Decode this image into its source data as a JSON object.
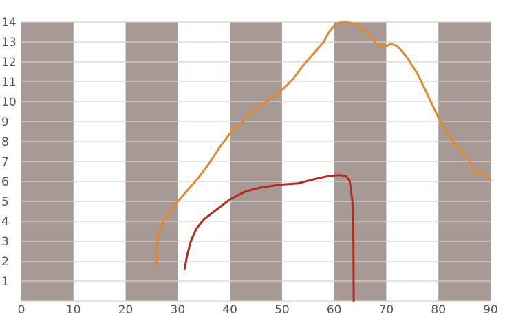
{
  "chart_data": {
    "type": "line",
    "title": "",
    "xlabel": "",
    "ylabel": "",
    "xlim": [
      0,
      90
    ],
    "ylim": [
      0,
      14
    ],
    "x_ticks": [
      "0",
      "10",
      "20",
      "30",
      "40",
      "50",
      "60",
      "70",
      "80",
      "90"
    ],
    "y_ticks": [
      "1",
      "2",
      "3",
      "4",
      "5",
      "6",
      "7",
      "8",
      "9",
      "10",
      "11",
      "12",
      "13",
      "14"
    ],
    "grid": true,
    "shaded_bands": [
      [
        0,
        10
      ],
      [
        20,
        30
      ],
      [
        40,
        50
      ],
      [
        60,
        70
      ],
      [
        80,
        90
      ]
    ],
    "series": [
      {
        "color": "#e08a2b",
        "points": [
          [
            25.8,
            1.7
          ],
          [
            26.3,
            3.5
          ],
          [
            27,
            3.9
          ],
          [
            28,
            4.3
          ],
          [
            30,
            5.0
          ],
          [
            32,
            5.6
          ],
          [
            34,
            6.2
          ],
          [
            36,
            6.9
          ],
          [
            38,
            7.7
          ],
          [
            40,
            8.4
          ],
          [
            42,
            8.9
          ],
          [
            44,
            9.4
          ],
          [
            46,
            9.8
          ],
          [
            48,
            10.2
          ],
          [
            50,
            10.6
          ],
          [
            52,
            11.1
          ],
          [
            54,
            11.8
          ],
          [
            56,
            12.4
          ],
          [
            58,
            13.0
          ],
          [
            59,
            13.5
          ],
          [
            60,
            13.8
          ],
          [
            61,
            13.97
          ],
          [
            62,
            14.0
          ],
          [
            63,
            13.97
          ],
          [
            64,
            13.9
          ],
          [
            65,
            13.75
          ],
          [
            66,
            13.55
          ],
          [
            67,
            13.3
          ],
          [
            68,
            12.95
          ],
          [
            69,
            12.75
          ],
          [
            70,
            12.8
          ],
          [
            71,
            12.9
          ],
          [
            72,
            12.8
          ],
          [
            73,
            12.55
          ],
          [
            74,
            12.2
          ],
          [
            76,
            11.4
          ],
          [
            78,
            10.3
          ],
          [
            80,
            9.2
          ],
          [
            82,
            8.3
          ],
          [
            84,
            7.6
          ],
          [
            86,
            7.0
          ],
          [
            87,
            6.4
          ],
          [
            88,
            6.5
          ],
          [
            89,
            6.35
          ],
          [
            90,
            6.05
          ]
        ]
      },
      {
        "color": "#b52a1e",
        "points": [
          [
            31.3,
            1.6
          ],
          [
            31.8,
            2.3
          ],
          [
            32.5,
            3.0
          ],
          [
            33.5,
            3.6
          ],
          [
            35,
            4.1
          ],
          [
            37,
            4.5
          ],
          [
            40,
            5.1
          ],
          [
            43,
            5.5
          ],
          [
            46,
            5.7
          ],
          [
            50,
            5.85
          ],
          [
            53,
            5.9
          ],
          [
            56,
            6.1
          ],
          [
            59,
            6.28
          ],
          [
            61,
            6.32
          ],
          [
            62.3,
            6.28
          ],
          [
            63,
            6.0
          ],
          [
            63.5,
            5.0
          ],
          [
            63.7,
            3.0
          ],
          [
            63.75,
            0
          ]
        ]
      }
    ]
  }
}
